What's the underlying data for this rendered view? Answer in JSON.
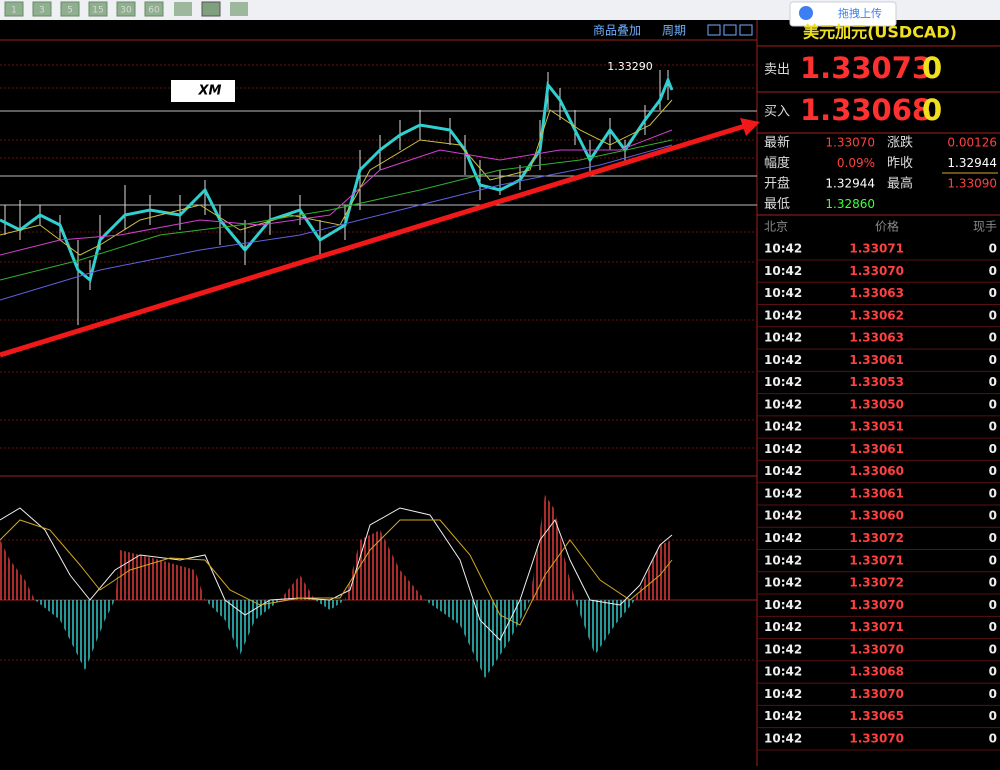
{
  "toolbar": {
    "buttons": [
      "1",
      "3",
      "5",
      "15",
      "30",
      "60"
    ],
    "upload": "拖拽上传"
  },
  "chart": {
    "menu": [
      "商品叠加",
      "周期"
    ],
    "price_label": "1.33290",
    "logo": "XM"
  },
  "quote": {
    "title": "美元加元(USDCAD)",
    "sell": {
      "label": "卖出",
      "price": "1.33073",
      "volume": "0"
    },
    "buy": {
      "label": "买入",
      "price": "1.33068",
      "volume": "0"
    },
    "stats": [
      {
        "label": "最新",
        "value": "1.33070",
        "color": "#ff4040"
      },
      {
        "label": "涨跌",
        "value": "0.00126",
        "color": "#ff4040"
      },
      {
        "label": "幅度",
        "value": "0.09%",
        "color": "#ff4040"
      },
      {
        "label": "昨收",
        "value": "1.32944",
        "color": "#ffffff"
      },
      {
        "label": "开盘",
        "value": "1.32944",
        "color": "#ffffff"
      },
      {
        "label": "最高",
        "value": "1.33090",
        "color": "#ff4040"
      },
      {
        "label": "最低",
        "value": "1.32860",
        "color": "#40ff40"
      }
    ],
    "trades": {
      "header": [
        "北京",
        "价格",
        "现手"
      ],
      "rows": [
        [
          "10:42",
          "1.33071",
          "0"
        ],
        [
          "10:42",
          "1.33070",
          "0"
        ],
        [
          "10:42",
          "1.33063",
          "0"
        ],
        [
          "10:42",
          "1.33062",
          "0"
        ],
        [
          "10:42",
          "1.33063",
          "0"
        ],
        [
          "10:42",
          "1.33061",
          "0"
        ],
        [
          "10:42",
          "1.33053",
          "0"
        ],
        [
          "10:42",
          "1.33050",
          "0"
        ],
        [
          "10:42",
          "1.33051",
          "0"
        ],
        [
          "10:42",
          "1.33061",
          "0"
        ],
        [
          "10:42",
          "1.33060",
          "0"
        ],
        [
          "10:42",
          "1.33061",
          "0"
        ],
        [
          "10:42",
          "1.33060",
          "0"
        ],
        [
          "10:42",
          "1.33072",
          "0"
        ],
        [
          "10:42",
          "1.33071",
          "0"
        ],
        [
          "10:42",
          "1.33072",
          "0"
        ],
        [
          "10:42",
          "1.33070",
          "0"
        ],
        [
          "10:42",
          "1.33071",
          "0"
        ],
        [
          "10:42",
          "1.33070",
          "0"
        ],
        [
          "10:42",
          "1.33068",
          "0"
        ],
        [
          "10:42",
          "1.33070",
          "0"
        ],
        [
          "10:42",
          "1.33065",
          "0"
        ],
        [
          "10:42",
          "1.33070",
          "0"
        ]
      ]
    }
  }
}
